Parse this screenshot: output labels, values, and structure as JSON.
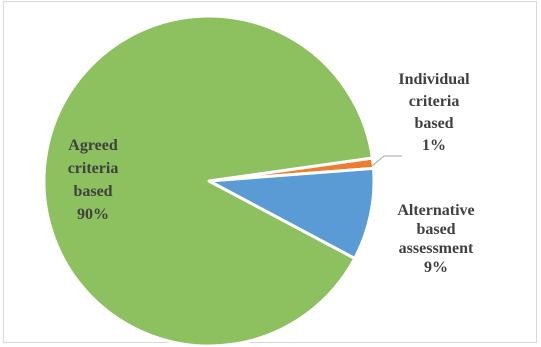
{
  "chart_data": {
    "type": "pie",
    "title": "",
    "slices": [
      {
        "name": "Individual criteria based",
        "value": 1,
        "label_lines": [
          "Individual",
          "criteria",
          "based",
          "1%"
        ],
        "color": "#ED7D31"
      },
      {
        "name": "Alternative based assessment",
        "value": 9,
        "label_lines": [
          "Alternative",
          "based",
          "assessment",
          "9%"
        ],
        "color": "#5B9BD5"
      },
      {
        "name": "Agreed criteria based",
        "value": 90,
        "label_lines": [
          "Agreed",
          "criteria",
          "based",
          "90%"
        ],
        "color": "#8DC05E"
      }
    ]
  }
}
